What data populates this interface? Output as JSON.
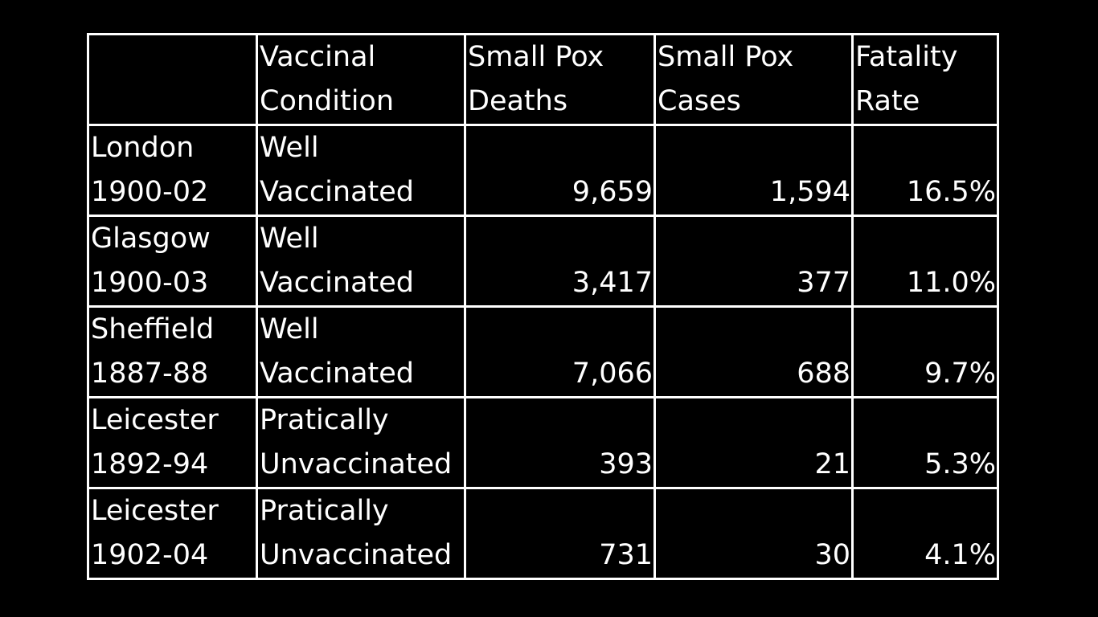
{
  "table": {
    "headers": [
      {
        "line1": "",
        "line2": ""
      },
      {
        "line1": "Vaccinal",
        "line2": "Condition"
      },
      {
        "line1": "Small Pox",
        "line2": "Deaths"
      },
      {
        "line1": "Small Pox",
        "line2": "Cases"
      },
      {
        "line1": "Fatality",
        "line2": "Rate"
      }
    ],
    "rows": [
      {
        "place": "London",
        "years": "1900-02",
        "cond1": "Well",
        "cond2": "Vaccinated",
        "deaths": "9,659",
        "cases": "1,594",
        "rate": "16.5%"
      },
      {
        "place": "Glasgow",
        "years": "1900-03",
        "cond1": "Well",
        "cond2": "Vaccinated",
        "deaths": "3,417",
        "cases": "377",
        "rate": "11.0%"
      },
      {
        "place": "Sheffield",
        "years": "1887-88",
        "cond1": "Well",
        "cond2": "Vaccinated",
        "deaths": "7,066",
        "cases": "688",
        "rate": "9.7%"
      },
      {
        "place": "Leicester",
        "years": "1892-94",
        "cond1": "Pratically",
        "cond2": "Unvaccinated",
        "deaths": "393",
        "cases": "21",
        "rate": "5.3%"
      },
      {
        "place": "Leicester",
        "years": "1902-04",
        "cond1": "Pratically",
        "cond2": "Unvaccinated",
        "deaths": "731",
        "cases": "30",
        "rate": "4.1%"
      }
    ]
  }
}
